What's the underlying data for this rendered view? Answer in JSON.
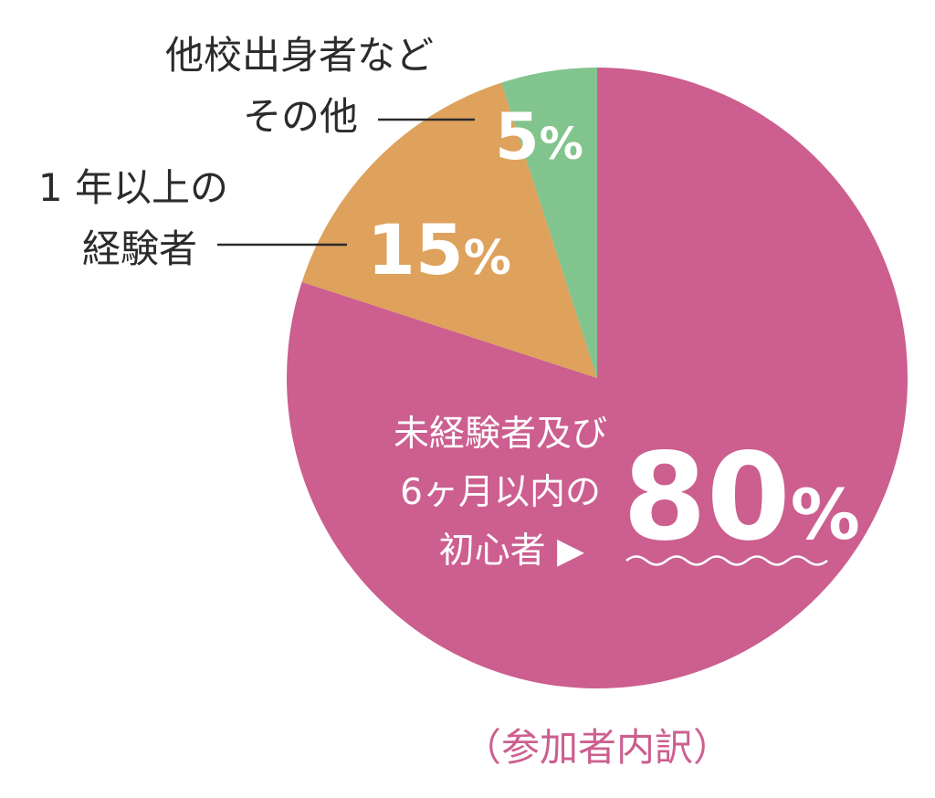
{
  "chart_data": {
    "type": "pie",
    "slices": [
      {
        "value": 80,
        "label_lines": [
          "未経験者及び",
          "6ヶ月以内の",
          "初心者 ▶"
        ],
        "percent_text": "80",
        "color": "#cc5f8f"
      },
      {
        "value": 15,
        "label_lines": [
          "1 年以上の",
          "経験者"
        ],
        "percent_text": "15",
        "color": "#dea25c"
      },
      {
        "value": 5,
        "label_lines": [
          "他校出身者など",
          "その他"
        ],
        "percent_text": "5",
        "color": "#82c48d"
      }
    ],
    "percent_sign": "%",
    "caption": "（参加者内訳）",
    "start_angle_deg": 0,
    "direction": "clockwise"
  }
}
